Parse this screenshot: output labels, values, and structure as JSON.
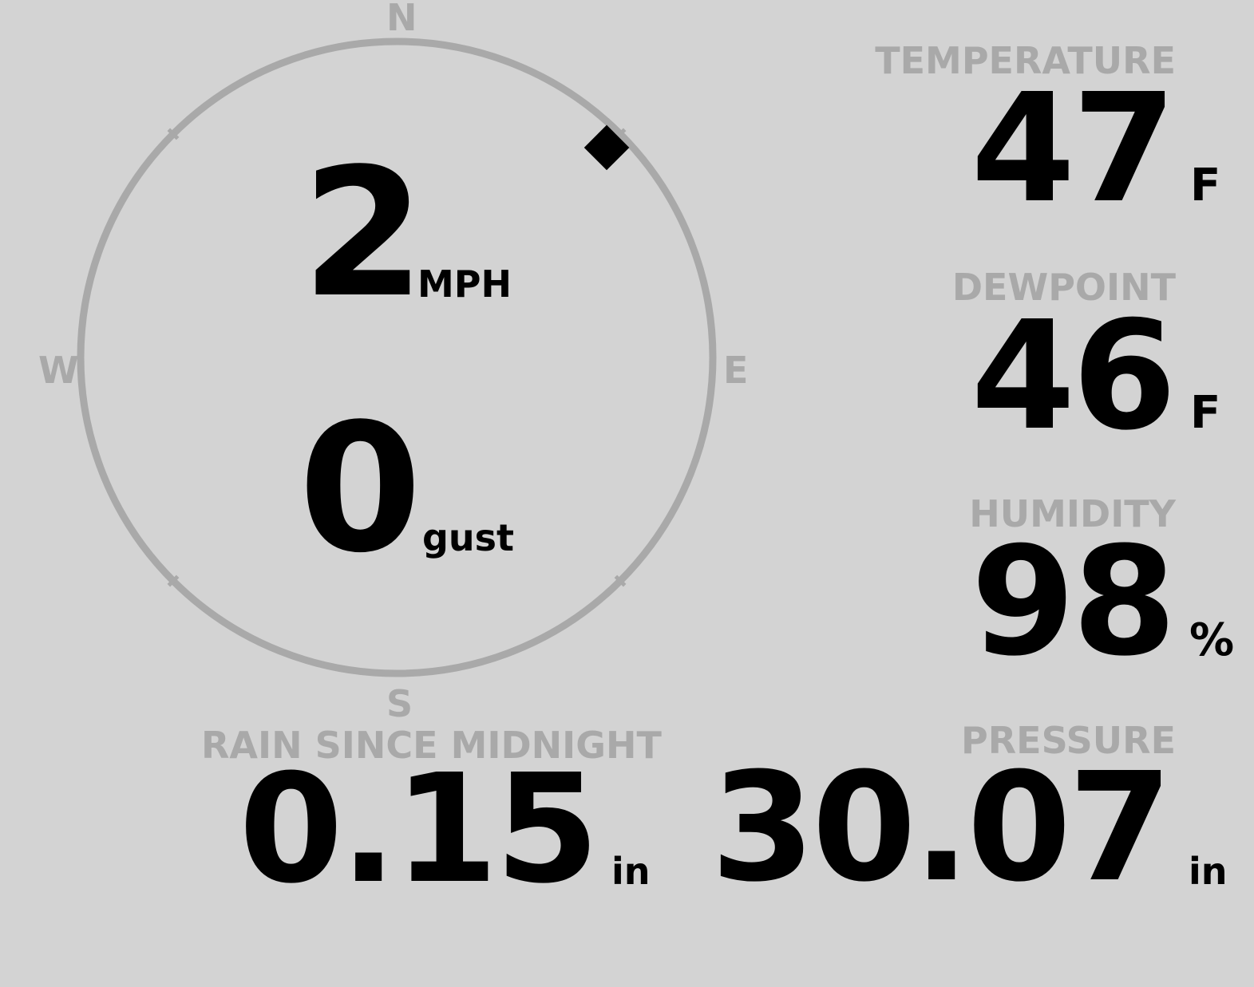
{
  "colors": {
    "background": "#d3d3d3",
    "label": "#a9a9a9",
    "value": "#000000",
    "compass_ring": "#a9a9a9"
  },
  "wind": {
    "speed": "2",
    "speed_unit": "MPH",
    "gust": "0",
    "gust_label": "gust",
    "direction_degrees": 45,
    "compass": {
      "north": "N",
      "south": "S",
      "east": "E",
      "west": "W"
    }
  },
  "temperature": {
    "label": "TEMPERATURE",
    "value": "47",
    "unit": "F"
  },
  "dewpoint": {
    "label": "DEWPOINT",
    "value": "46",
    "unit": "F"
  },
  "humidity": {
    "label": "HUMIDITY",
    "value": "98",
    "unit": "%"
  },
  "rain": {
    "label": "RAIN SINCE MIDNIGHT",
    "value": "0.15",
    "unit": "in"
  },
  "pressure": {
    "label": "PRESSURE",
    "value": "30.07",
    "unit": "in"
  }
}
